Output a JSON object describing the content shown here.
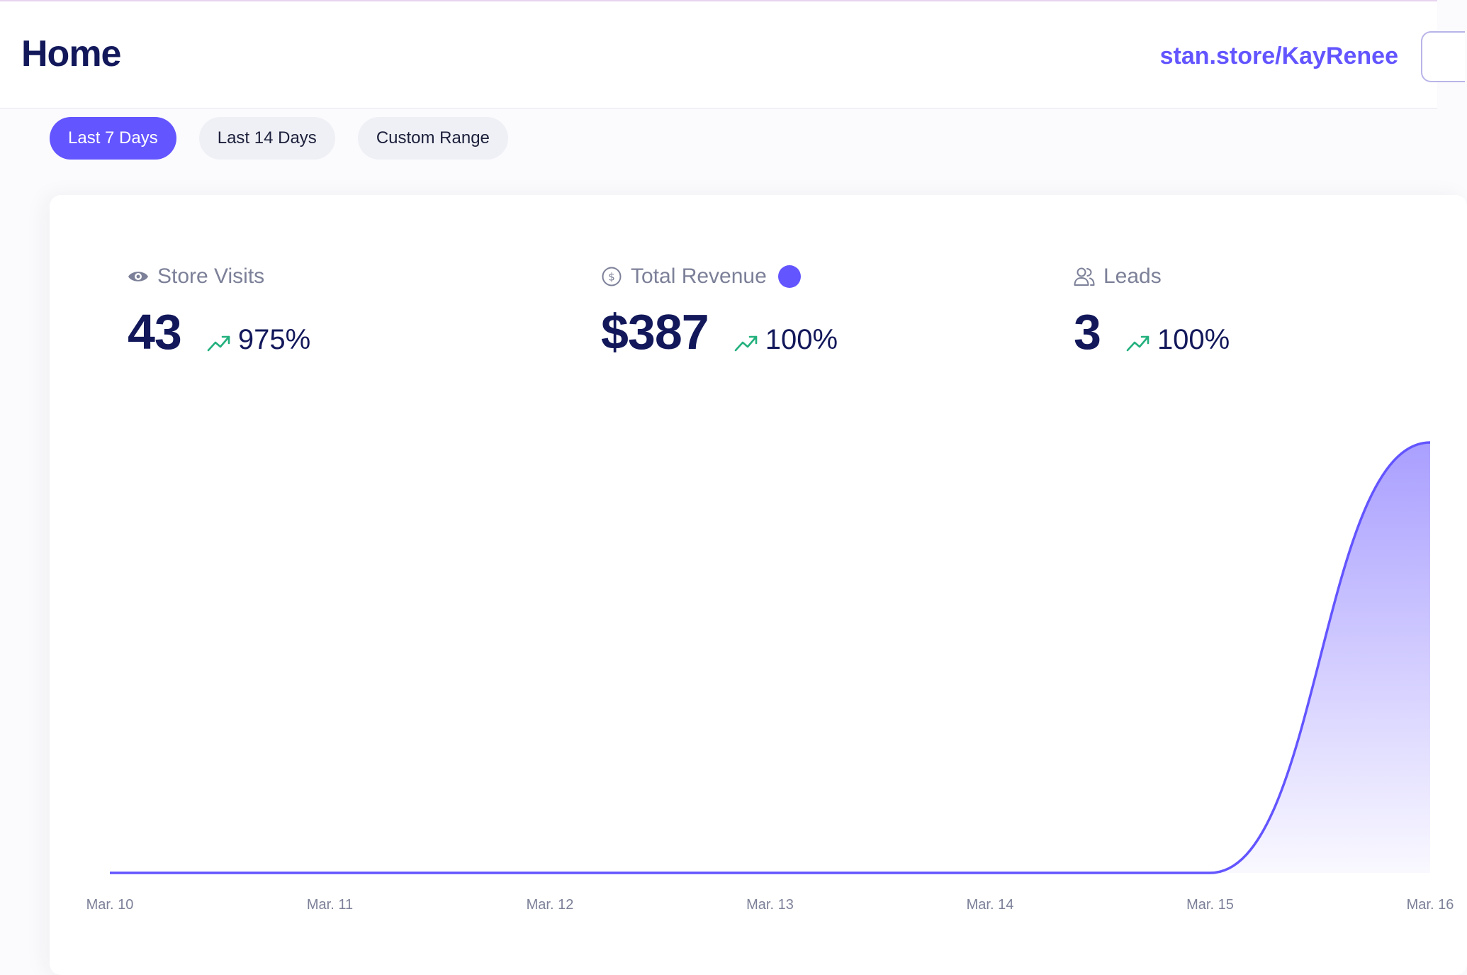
{
  "header": {
    "title": "Home",
    "store_link": "stan.store/KayRenee"
  },
  "filters": {
    "items": [
      {
        "label": "Last 7 Days",
        "active": true
      },
      {
        "label": "Last 14 Days",
        "active": false
      },
      {
        "label": "Custom Range",
        "active": false
      }
    ]
  },
  "metrics": {
    "store_visits": {
      "label": "Store Visits",
      "value": "43",
      "change": "975%",
      "icon": "eye-icon"
    },
    "total_revenue": {
      "label": "Total Revenue",
      "value": "$387",
      "change": "100%",
      "icon": "dollar-circle-icon"
    },
    "leads": {
      "label": "Leads",
      "value": "3",
      "change": "100%",
      "icon": "users-icon"
    }
  },
  "colors": {
    "accent": "#6355ff",
    "title": "#12185a",
    "trend_up": "#22b07d",
    "muted": "#7c8098"
  },
  "chart_data": {
    "type": "area",
    "x_labels": [
      "Mar. 10",
      "Mar. 11",
      "Mar. 12",
      "Mar. 13",
      "Mar. 14",
      "Mar. 15",
      "Mar. 16"
    ],
    "values": [
      0,
      0,
      0,
      0,
      0,
      0,
      387
    ],
    "ylim": [
      0,
      387
    ],
    "grid": false,
    "series": [
      {
        "values": [
          0,
          0,
          0,
          0,
          0,
          0,
          387
        ]
      }
    ]
  }
}
